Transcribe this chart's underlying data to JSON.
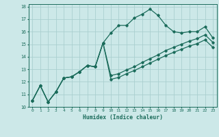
{
  "xlabel": "Humidex (Indice chaleur)",
  "background_color": "#cce8e8",
  "grid_color": "#aacfcf",
  "line_color": "#1a6b5a",
  "xlim": [
    -0.5,
    23.5
  ],
  "ylim": [
    10,
    18.2
  ],
  "xticks": [
    0,
    1,
    2,
    3,
    4,
    5,
    6,
    7,
    8,
    9,
    10,
    11,
    12,
    13,
    14,
    15,
    16,
    17,
    18,
    19,
    20,
    21,
    22,
    23
  ],
  "yticks": [
    10,
    11,
    12,
    13,
    14,
    15,
    16,
    17,
    18
  ],
  "line1_x": [
    0,
    1,
    2,
    3,
    4,
    5,
    6,
    7,
    8,
    9,
    10,
    11,
    12,
    13,
    14,
    15,
    16,
    17,
    18,
    19,
    20,
    21,
    22,
    23
  ],
  "line1_y": [
    10.5,
    11.7,
    10.4,
    11.2,
    12.3,
    12.4,
    12.8,
    13.3,
    13.2,
    15.1,
    15.9,
    16.5,
    16.5,
    17.1,
    17.4,
    17.8,
    17.3,
    16.5,
    16.0,
    15.9,
    16.0,
    16.0,
    16.4,
    15.5
  ],
  "line2_x": [
    0,
    1,
    2,
    3,
    4,
    5,
    6,
    7,
    8,
    9,
    10,
    11,
    12,
    13,
    14,
    15,
    16,
    17,
    18,
    19,
    20,
    21,
    22,
    23
  ],
  "line2_y": [
    10.5,
    11.7,
    10.4,
    11.2,
    12.3,
    12.4,
    12.8,
    13.3,
    13.2,
    15.1,
    12.5,
    12.65,
    12.95,
    13.2,
    13.55,
    13.85,
    14.15,
    14.5,
    14.75,
    15.0,
    15.25,
    15.45,
    15.75,
    15.15
  ],
  "line3_x": [
    0,
    1,
    2,
    3,
    4,
    5,
    6,
    7,
    8,
    9,
    10,
    11,
    12,
    13,
    14,
    15,
    16,
    17,
    18,
    19,
    20,
    21,
    22,
    23
  ],
  "line3_y": [
    10.5,
    11.7,
    10.4,
    11.2,
    12.3,
    12.4,
    12.8,
    13.3,
    13.2,
    15.1,
    12.2,
    12.35,
    12.65,
    12.9,
    13.2,
    13.5,
    13.8,
    14.1,
    14.35,
    14.6,
    14.85,
    15.05,
    15.35,
    14.75
  ]
}
